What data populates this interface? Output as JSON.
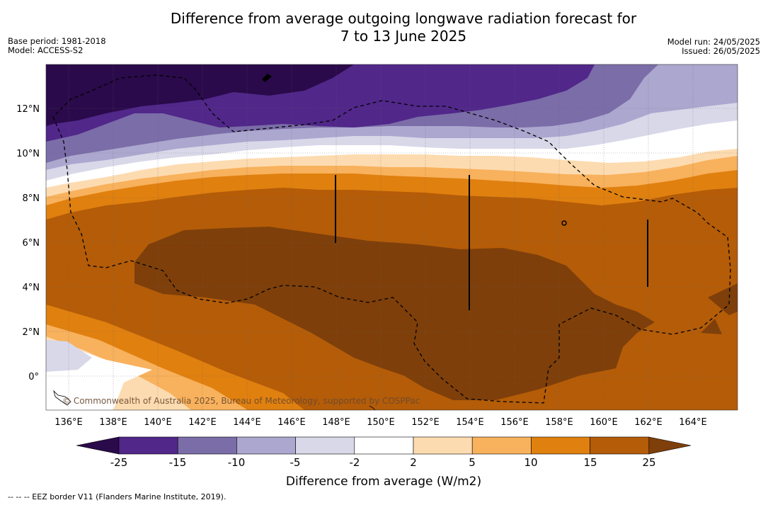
{
  "title_line1": "Difference from average outgoing longwave radiation forecast for",
  "title_line2": "7 to 13 June 2025",
  "meta_left": {
    "base_period": "Base period: 1981-2018",
    "model": "Model: ACCESS-S2"
  },
  "meta_right": {
    "model_run": "Model run: 24/05/2025",
    "issued": "Issued: 26/05/2025"
  },
  "map": {
    "lon_range": [
      135,
      166
    ],
    "lat_range": [
      -1.5,
      14
    ],
    "x_ticks": [
      "136°E",
      "138°E",
      "140°E",
      "142°E",
      "144°E",
      "146°E",
      "148°E",
      "150°E",
      "152°E",
      "154°E",
      "156°E",
      "158°E",
      "160°E",
      "162°E",
      "164°E"
    ],
    "y_ticks": [
      "12°N",
      "10°N",
      "8°N",
      "6°N",
      "4°N",
      "2°N",
      "0°"
    ],
    "copyright": "© Commonwealth of Australia 2025, Bureau of Meteorology, supported by COSPPac"
  },
  "colorbar": {
    "tick_labels": [
      "-25",
      "-15",
      "-10",
      "-5",
      "-2",
      "2",
      "5",
      "10",
      "15",
      "25"
    ],
    "colors": [
      "#2a0a4a",
      "#51278a",
      "#7b6da8",
      "#aca7cf",
      "#d8d8e9",
      "#ffffff",
      "#fddbb0",
      "#f8b15c",
      "#e0800f",
      "#b45c08",
      "#7e3f0a"
    ],
    "label": "Difference from average (W/m2)"
  },
  "footer": "--  --  -- EEZ border V11 (Flanders Marine Institute, 2019)."
}
